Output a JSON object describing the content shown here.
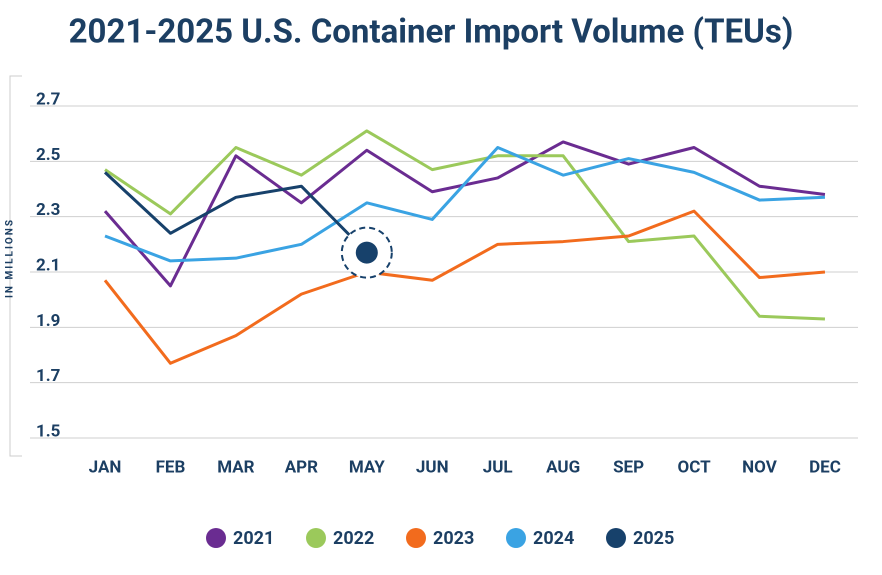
{
  "chart_data": {
    "type": "line",
    "title": "2021-2025 U.S. Container Import Volume (TEUs)",
    "y_label": "IN MILLIONS",
    "categories": [
      "JAN",
      "FEB",
      "MAR",
      "APR",
      "MAY",
      "JUN",
      "JUL",
      "AUG",
      "SEP",
      "OCT",
      "NOV",
      "DEC"
    ],
    "series": [
      {
        "name": "2021",
        "color": "#6a2c91",
        "values": [
          2.32,
          2.05,
          2.52,
          2.35,
          2.54,
          2.39,
          2.44,
          2.57,
          2.49,
          2.55,
          2.41,
          2.38
        ]
      },
      {
        "name": "2022",
        "color": "#9bc95b",
        "values": [
          2.47,
          2.31,
          2.55,
          2.45,
          2.61,
          2.47,
          2.52,
          2.52,
          2.21,
          2.23,
          1.94,
          1.93
        ]
      },
      {
        "name": "2023",
        "color": "#f26b1d",
        "values": [
          2.07,
          1.77,
          1.87,
          2.02,
          2.1,
          2.07,
          2.2,
          2.21,
          2.23,
          2.32,
          2.08,
          2.1
        ]
      },
      {
        "name": "2024",
        "color": "#3aa3e3",
        "values": [
          2.23,
          2.14,
          2.15,
          2.2,
          2.35,
          2.29,
          2.55,
          2.45,
          2.51,
          2.46,
          2.36,
          2.37
        ]
      },
      {
        "name": "2025",
        "color": "#17416b",
        "values": [
          2.46,
          2.24,
          2.37,
          2.41,
          2.17,
          null,
          null,
          null,
          null,
          null,
          null,
          null
        ]
      }
    ],
    "ylim": [
      1.5,
      2.7
    ],
    "yticks": [
      1.5,
      1.7,
      1.9,
      2.1,
      2.3,
      2.5,
      2.7
    ],
    "grid": true,
    "legend": "bottom"
  }
}
